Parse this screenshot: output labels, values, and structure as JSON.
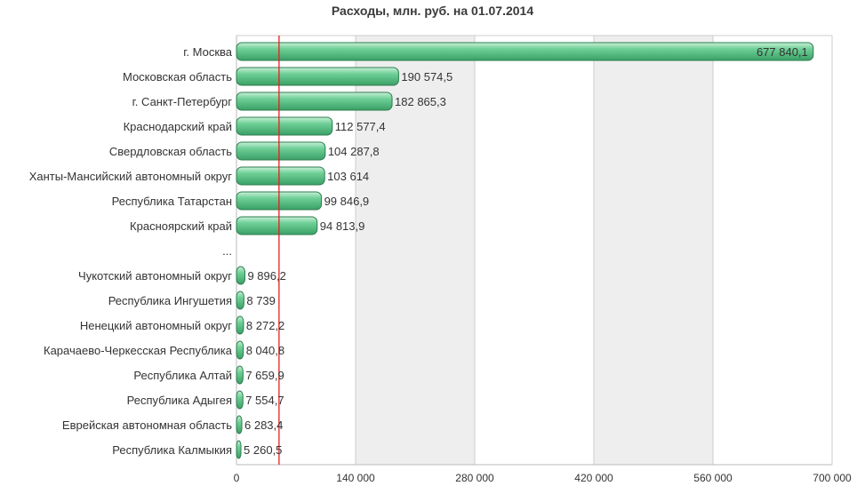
{
  "chart_data": {
    "type": "bar",
    "orientation": "horizontal",
    "title": "Расходы, млн. руб. на 01.07.2014",
    "xlabel": "",
    "ylabel": "",
    "categories": [
      "г. Москва",
      "Московская область",
      "г. Санкт-Петербург",
      "Краснодарский край",
      "Свердловская область",
      "Ханты-Мансийский автономный округ",
      "Республика Татарстан",
      "Красноярский край",
      "...",
      "Чукотский автономный округ",
      "Республика Ингушетия",
      "Ненецкий автономный округ",
      "Карачаево-Черкесская Республика",
      "Республика Алтай",
      "Республика Адыгея",
      "Еврейская автономная область",
      "Республика Калмыкия"
    ],
    "values": [
      677840.1,
      190574.5,
      182865.3,
      112577.4,
      104287.8,
      103614,
      99846.9,
      94813.9,
      null,
      9896.2,
      8739,
      8272.2,
      8040.8,
      7659.9,
      7554.7,
      6283.4,
      5260.5
    ],
    "value_labels": [
      "677 840,1",
      "190 574,5",
      "182 865,3",
      "112 577,4",
      "104 287,8",
      "103 614",
      "99 846,9",
      "94 813,9",
      "",
      "9 896,2",
      "8 739",
      "8 272,2",
      "8 040,8",
      "7 659,9",
      "7 554,7",
      "6 283,4",
      "5 260,5"
    ],
    "xlim": [
      0,
      700000
    ],
    "x_ticks": [
      0,
      140000,
      280000,
      420000,
      560000,
      700000
    ],
    "x_tick_labels": [
      "0",
      "140 000",
      "280 000",
      "420 000",
      "560 000",
      "700 000"
    ],
    "reference_line": 50000,
    "grid": "alternating vertical bands",
    "colors": {
      "bar": "#5cc08a",
      "bar_edge": "#2e7d4f",
      "reference_line": "#e02020",
      "band": "#eeeeee"
    }
  }
}
